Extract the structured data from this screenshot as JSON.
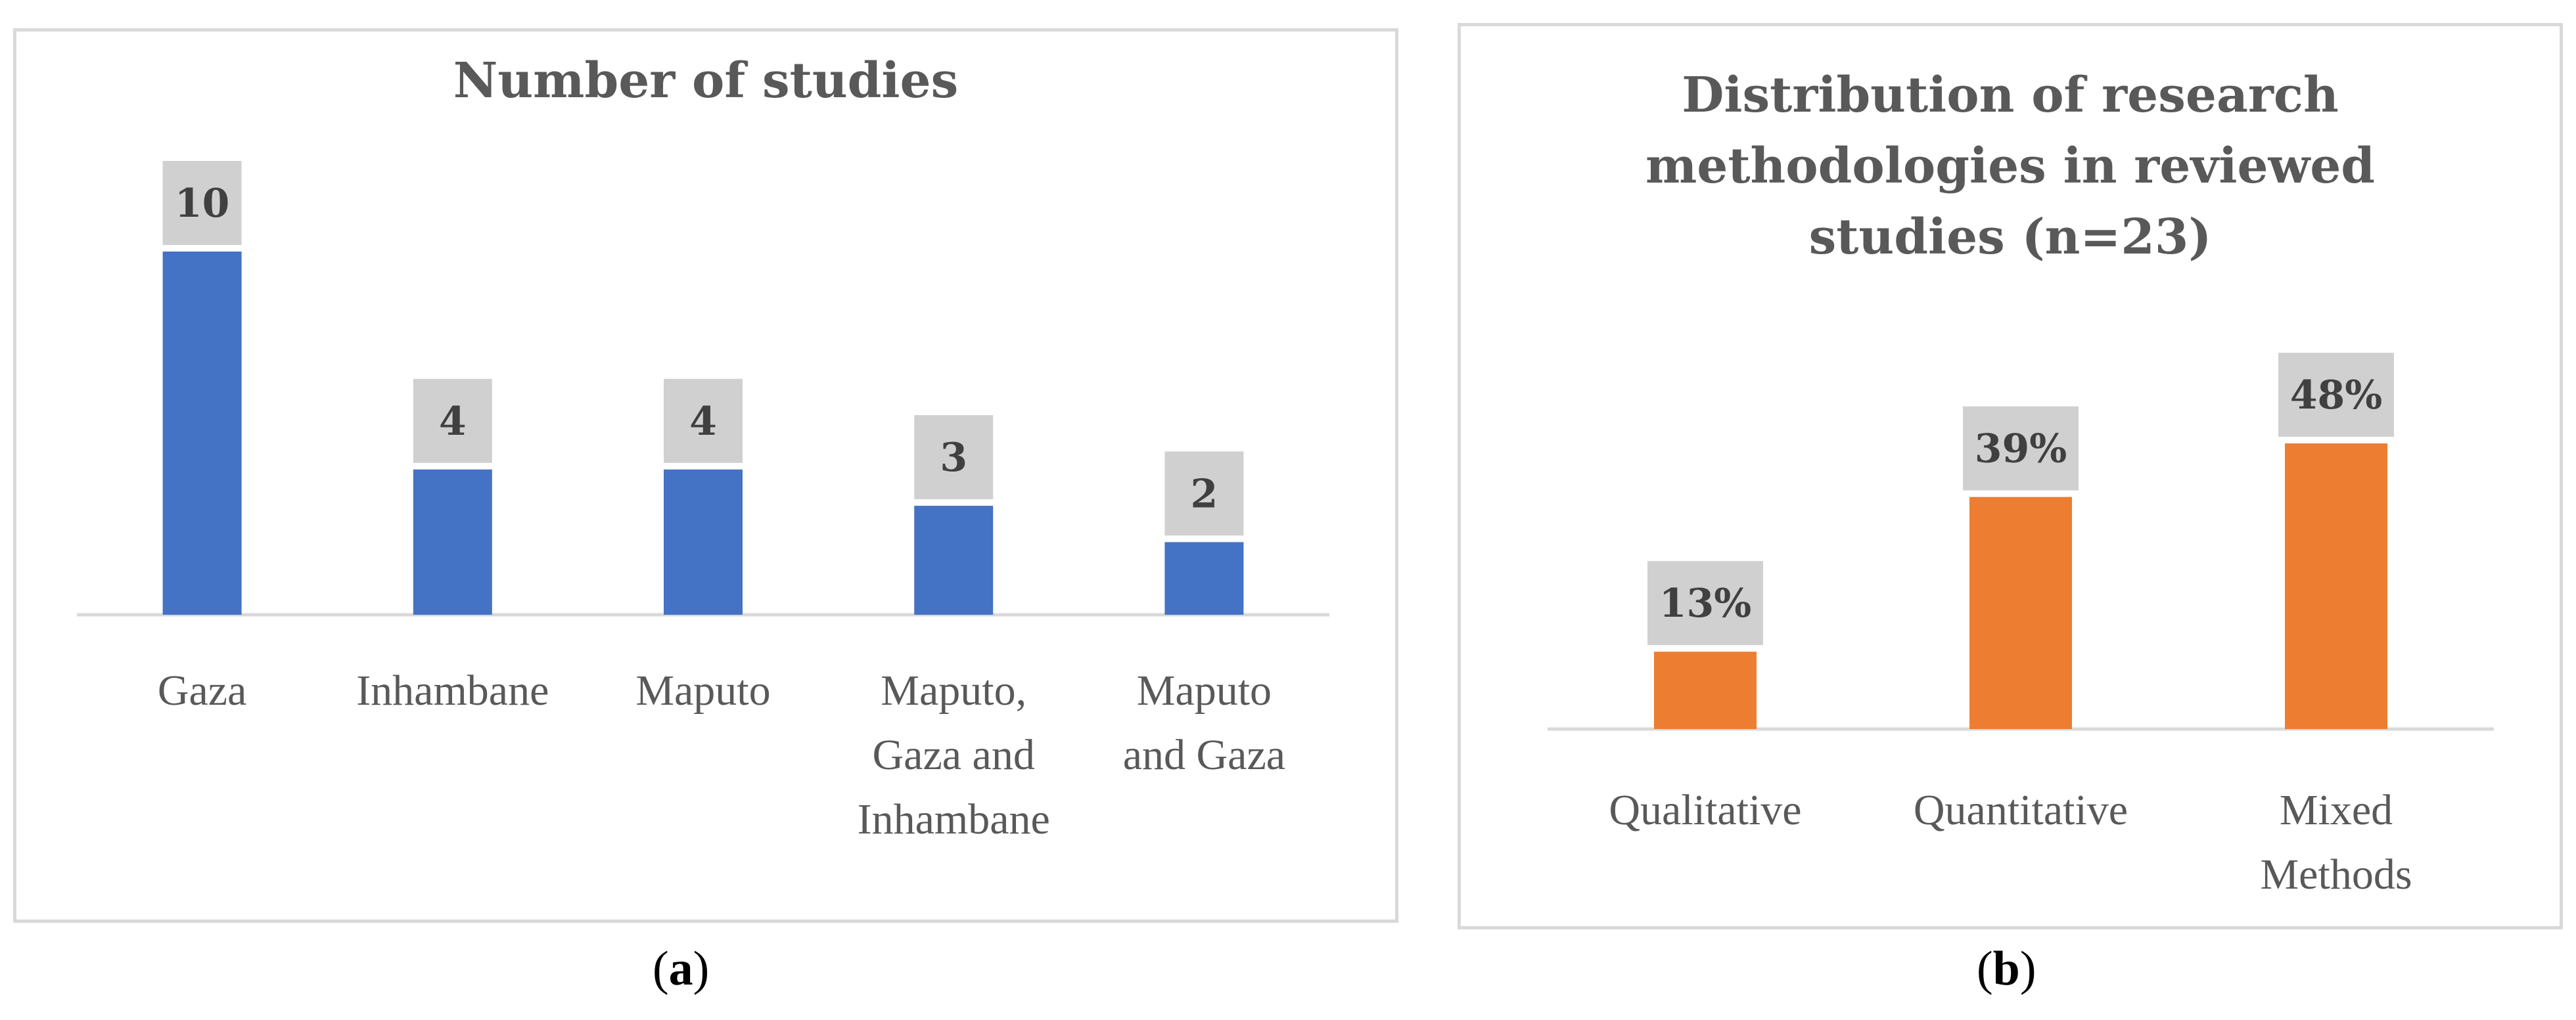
{
  "chart_data": [
    {
      "type": "bar",
      "title": "Number of studies",
      "categories": [
        "Gaza",
        "Inhambane",
        "Maputo",
        "Maputo, Gaza and Inhambane",
        "Maputo and Gaza"
      ],
      "category_lines": [
        [
          "Gaza"
        ],
        [
          "Inhambane"
        ],
        [
          "Maputo"
        ],
        [
          "Maputo,",
          "Gaza and",
          "Inhambane"
        ],
        [
          "Maputo",
          "and Gaza"
        ]
      ],
      "values": [
        10,
        4,
        4,
        3,
        2
      ],
      "value_labels": [
        "10",
        "4",
        "4",
        "3",
        "2"
      ],
      "xlabel": "",
      "ylabel": "",
      "grid": false,
      "bar_color": "#4472c4",
      "label_box_color": "#d0d0d0",
      "caption_letter": "a"
    },
    {
      "type": "bar",
      "title": "Distribution of research methodologies in reviewed studies (n=23)",
      "title_lines": [
        "Distribution of research",
        "methodologies in reviewed",
        "studies (n=23)"
      ],
      "categories": [
        "Qualitative",
        "Quantitative",
        "Mixed Methods"
      ],
      "category_lines": [
        [
          "Qualitative"
        ],
        [
          "Quantitative"
        ],
        [
          "Mixed",
          "Methods"
        ]
      ],
      "values": [
        13,
        39,
        48
      ],
      "value_labels": [
        "13%",
        "39%",
        "48%"
      ],
      "xlabel": "",
      "ylabel": "",
      "grid": false,
      "bar_color": "#ed7d31",
      "label_box_color": "#d0d0d0",
      "caption_letter": "b"
    }
  ]
}
